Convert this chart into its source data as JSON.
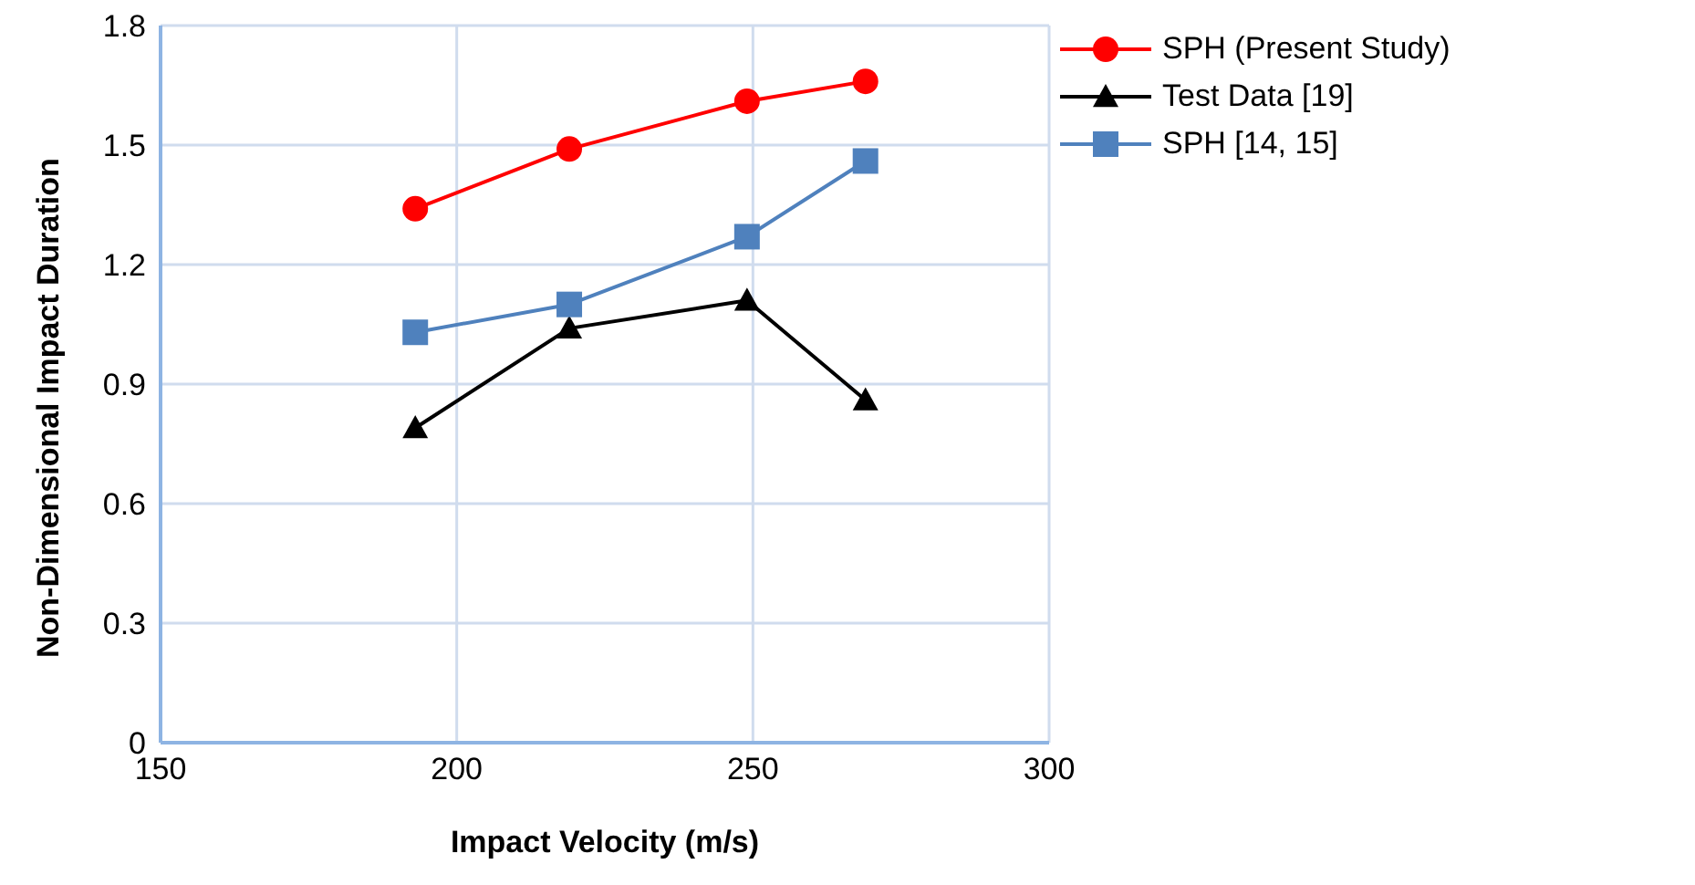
{
  "chart_data": {
    "type": "line",
    "xlabel": "Impact Velocity (m/s)",
    "ylabel": "Non-Dimensional Impact Duration",
    "x": [
      193,
      219,
      249,
      269
    ],
    "series": [
      {
        "name": "SPH (Present Study)",
        "color": "#ff0000",
        "marker": "circle",
        "values": [
          1.34,
          1.49,
          1.61,
          1.66
        ]
      },
      {
        "name": "Test Data [19]",
        "color": "#000000",
        "marker": "triangle",
        "values": [
          0.79,
          1.04,
          1.11,
          0.86
        ]
      },
      {
        "name": "SPH [14, 15]",
        "color": "#4f81bd",
        "marker": "square",
        "values": [
          1.03,
          1.1,
          1.27,
          1.46
        ]
      }
    ],
    "xlim": [
      150,
      300
    ],
    "xticks": [
      150,
      200,
      250,
      300
    ],
    "ylim": [
      0,
      1.8
    ],
    "yticks": [
      0,
      0.3,
      0.6,
      0.9,
      1.2,
      1.5,
      1.8
    ],
    "grid": true,
    "legend": "top right"
  }
}
